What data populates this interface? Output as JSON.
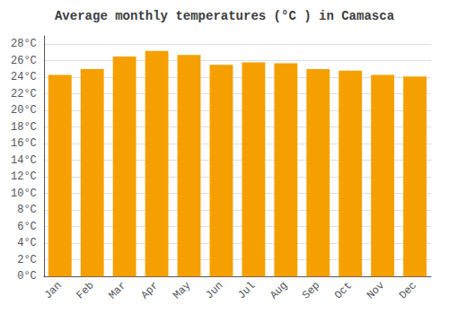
{
  "chart_data": {
    "type": "bar",
    "title": "Average monthly temperatures (°C ) in Camasca",
    "categories": [
      "Jan",
      "Feb",
      "Mar",
      "Apr",
      "May",
      "Jun",
      "Jul",
      "Aug",
      "Sep",
      "Oct",
      "Nov",
      "Dec"
    ],
    "values": [
      24.3,
      25.0,
      26.5,
      27.2,
      26.7,
      25.5,
      25.8,
      25.7,
      25.0,
      24.8,
      24.3,
      24.1
    ],
    "color": "#F5A000",
    "ylim": [
      0,
      29
    ],
    "yticks": [
      {
        "value": 0,
        "label": "0°C"
      },
      {
        "value": 2,
        "label": "2°C"
      },
      {
        "value": 4,
        "label": "4°C"
      },
      {
        "value": 6,
        "label": "6°C"
      },
      {
        "value": 8,
        "label": "8°C"
      },
      {
        "value": 10,
        "label": "10°C"
      },
      {
        "value": 12,
        "label": "12°C"
      },
      {
        "value": 14,
        "label": "14°C"
      },
      {
        "value": 16,
        "label": "16°C"
      },
      {
        "value": 18,
        "label": "18°C"
      },
      {
        "value": 20,
        "label": "20°C"
      },
      {
        "value": 22,
        "label": "22°C"
      },
      {
        "value": 24,
        "label": "24°C"
      },
      {
        "value": 26,
        "label": "26°C"
      },
      {
        "value": 28,
        "label": "28°C"
      }
    ],
    "grid": true
  }
}
